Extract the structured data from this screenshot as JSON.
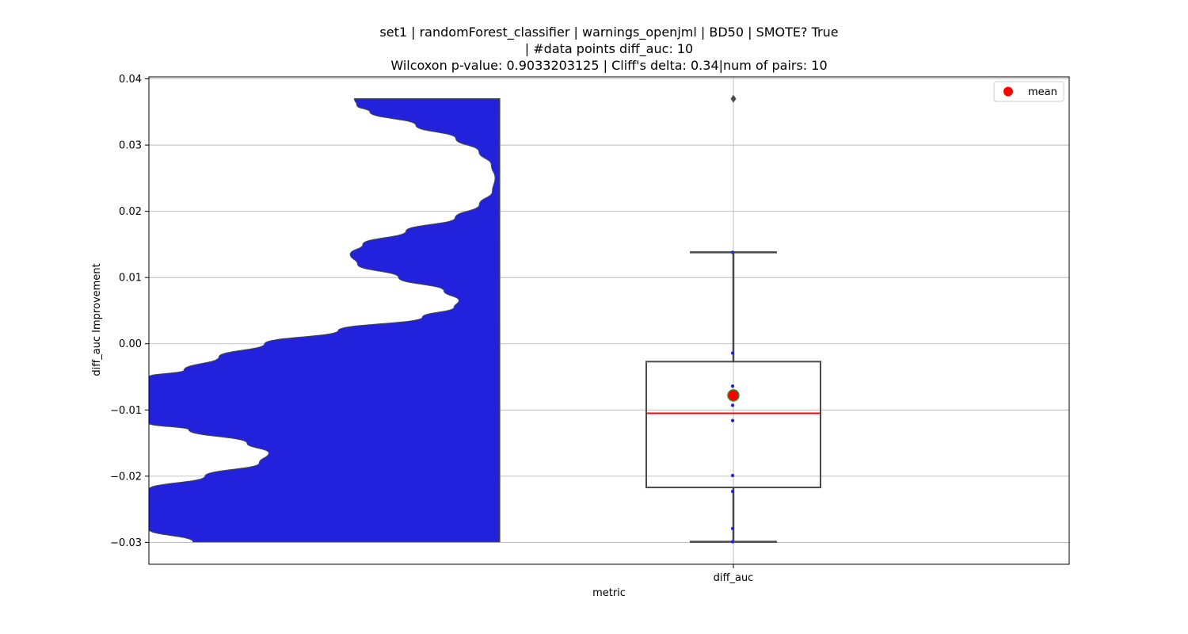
{
  "chart_data": {
    "type": "violin+box",
    "title_lines": [
      "set1 | randomForest_classifier | warnings_openjml | BD50 | SMOTE? True",
      "| #data points diff_auc: 10",
      "Wilcoxon p-value: 0.9033203125 | Cliff's delta: 0.34|num of pairs: 10"
    ],
    "xlabel": "metric",
    "ylabel": "diff_auc Improvement",
    "categories": [
      "diff_auc"
    ],
    "ylim": [
      -0.0333,
      0.0403
    ],
    "yticks": [
      -0.03,
      -0.02,
      -0.01,
      0.0,
      0.01,
      0.02,
      0.03,
      0.04
    ],
    "ytick_labels": [
      "−0.03",
      "−0.02",
      "−0.01",
      "0.00",
      "0.01",
      "0.02",
      "0.03",
      "0.04"
    ],
    "grid": true,
    "legend": {
      "placement": "top-right",
      "entries": [
        {
          "label": "mean",
          "color": "#ff0000"
        }
      ]
    },
    "violin": {
      "color": "#2222dd",
      "range": [
        -0.0299,
        0.037
      ],
      "half_width_profile": [
        [
          -0.0299,
          0.874
        ],
        [
          -0.028,
          1.0
        ],
        [
          -0.026,
          1.0
        ],
        [
          -0.024,
          1.0
        ],
        [
          -0.022,
          1.0
        ],
        [
          -0.02,
          0.84
        ],
        [
          -0.018,
          0.685
        ],
        [
          -0.0165,
          0.658
        ],
        [
          -0.015,
          0.72
        ],
        [
          -0.013,
          0.886
        ],
        [
          -0.012,
          1.0
        ],
        [
          -0.01,
          1.0
        ],
        [
          -0.008,
          1.0
        ],
        [
          -0.006,
          1.0
        ],
        [
          -0.005,
          1.0
        ],
        [
          -0.004,
          0.9
        ],
        [
          -0.002,
          0.8
        ],
        [
          0.0,
          0.67
        ],
        [
          0.002,
          0.46
        ],
        [
          0.004,
          0.22
        ],
        [
          0.0055,
          0.13
        ],
        [
          0.0065,
          0.116
        ],
        [
          0.008,
          0.159
        ],
        [
          0.01,
          0.288
        ],
        [
          0.012,
          0.405
        ],
        [
          0.0135,
          0.426
        ],
        [
          0.015,
          0.39
        ],
        [
          0.017,
          0.267
        ],
        [
          0.019,
          0.127
        ],
        [
          0.021,
          0.058
        ],
        [
          0.023,
          0.021
        ],
        [
          0.025,
          0.013
        ],
        [
          0.027,
          0.024
        ],
        [
          0.029,
          0.059
        ],
        [
          0.031,
          0.125
        ],
        [
          0.033,
          0.239
        ],
        [
          0.035,
          0.37
        ],
        [
          0.036,
          0.407
        ],
        [
          0.037,
          0.414
        ]
      ]
    },
    "box": {
      "whisker_low": -0.0299,
      "q1": -0.0217,
      "median": -0.0105,
      "q3": -0.0027,
      "whisker_high": 0.0138,
      "mean": -0.0078,
      "outliers": [
        0.037
      ],
      "median_color": "#ff0000",
      "mean_color": "#ff0000"
    },
    "points": [
      0.0138,
      -0.0014,
      -0.0064,
      -0.0093,
      -0.0116,
      -0.0199,
      -0.0223,
      -0.0279,
      -0.0299,
      0.037
    ]
  }
}
